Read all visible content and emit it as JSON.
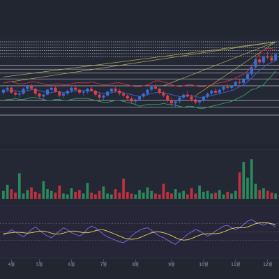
{
  "header": {
    "title": ""
  },
  "colors": {
    "background": "#222631",
    "up": "#3a6fd8",
    "down": "#e0404a",
    "volume_up": "#2a8a5e",
    "volume_down": "#c23040",
    "band_upper": "#c0304a",
    "band_middle": "#3b5fc8",
    "band_lower": "#2f9a60",
    "trendline": "#c9c060",
    "level": "#d7d9e0",
    "rsi": "#7f6ee6",
    "rsi_signal": "#e8d85a",
    "grid": "#2e3240"
  },
  "chart_data": {
    "type": "candlestick",
    "x_tick_labels": [
      "4월",
      "5월",
      "6월",
      "7월",
      "8월",
      "9월",
      "10월",
      "11월",
      "12월"
    ],
    "price": {
      "ylim": [
        0,
        100
      ],
      "candles": [
        [
          48,
          52,
          46,
          51
        ],
        [
          51,
          55,
          49,
          53
        ],
        [
          53,
          54,
          47,
          48
        ],
        [
          48,
          50,
          44,
          46
        ],
        [
          46,
          49,
          43,
          47
        ],
        [
          47,
          53,
          46,
          52
        ],
        [
          52,
          56,
          50,
          55
        ],
        [
          55,
          57,
          51,
          52
        ],
        [
          52,
          53,
          45,
          47
        ],
        [
          47,
          48,
          42,
          44
        ],
        [
          44,
          47,
          41,
          46
        ],
        [
          46,
          52,
          45,
          51
        ],
        [
          51,
          54,
          49,
          53
        ],
        [
          53,
          55,
          48,
          49
        ],
        [
          49,
          50,
          43,
          45
        ],
        [
          45,
          48,
          42,
          47
        ],
        [
          47,
          51,
          45,
          50
        ],
        [
          50,
          54,
          48,
          53
        ],
        [
          53,
          56,
          50,
          51
        ],
        [
          51,
          52,
          46,
          48
        ],
        [
          48,
          50,
          45,
          49
        ],
        [
          49,
          53,
          47,
          52
        ],
        [
          52,
          55,
          49,
          50
        ],
        [
          50,
          51,
          44,
          46
        ],
        [
          46,
          48,
          41,
          43
        ],
        [
          43,
          46,
          40,
          45
        ],
        [
          45,
          50,
          44,
          49
        ],
        [
          49,
          53,
          47,
          52
        ],
        [
          52,
          54,
          48,
          50
        ],
        [
          50,
          52,
          45,
          47
        ],
        [
          47,
          49,
          43,
          45
        ],
        [
          45,
          47,
          40,
          42
        ],
        [
          42,
          44,
          37,
          39
        ],
        [
          39,
          42,
          35,
          41
        ],
        [
          41,
          45,
          39,
          44
        ],
        [
          44,
          48,
          42,
          47
        ],
        [
          47,
          52,
          45,
          51
        ],
        [
          51,
          55,
          49,
          54
        ],
        [
          54,
          57,
          51,
          52
        ],
        [
          52,
          53,
          46,
          48
        ],
        [
          48,
          50,
          43,
          45
        ],
        [
          45,
          47,
          38,
          40
        ],
        [
          40,
          43,
          34,
          37
        ],
        [
          37,
          40,
          33,
          39
        ],
        [
          39,
          44,
          37,
          43
        ],
        [
          43,
          47,
          41,
          46
        ],
        [
          46,
          50,
          43,
          44
        ],
        [
          44,
          46,
          39,
          41
        ],
        [
          41,
          43,
          36,
          38
        ],
        [
          38,
          41,
          35,
          40
        ],
        [
          40,
          45,
          38,
          44
        ],
        [
          44,
          48,
          42,
          47
        ],
        [
          47,
          51,
          45,
          50
        ],
        [
          50,
          53,
          47,
          48
        ],
        [
          48,
          52,
          46,
          51
        ],
        [
          51,
          55,
          49,
          54
        ],
        [
          54,
          57,
          51,
          53
        ],
        [
          53,
          56,
          50,
          55
        ],
        [
          55,
          60,
          54,
          59
        ],
        [
          59,
          62,
          56,
          58
        ],
        [
          58,
          63,
          57,
          62
        ],
        [
          62,
          68,
          60,
          67
        ],
        [
          67,
          76,
          65,
          74
        ],
        [
          74,
          84,
          72,
          82
        ],
        [
          82,
          88,
          76,
          79
        ],
        [
          79,
          86,
          77,
          85
        ],
        [
          85,
          90,
          82,
          84
        ],
        [
          84,
          87,
          79,
          81
        ],
        [
          81,
          88,
          80,
          87
        ]
      ],
      "bollinger_upper": [
        58,
        59,
        59,
        58,
        57,
        57,
        58,
        59,
        59,
        58,
        57,
        56,
        56,
        57,
        57,
        56,
        56,
        57,
        58,
        58,
        58,
        58,
        59,
        58,
        57,
        56,
        56,
        57,
        58,
        58,
        57,
        56,
        55,
        54,
        54,
        55,
        56,
        58,
        60,
        60,
        59,
        58,
        56,
        55,
        54,
        55,
        56,
        56,
        55,
        54,
        54,
        55,
        56,
        57,
        58,
        59,
        60,
        61,
        63,
        65,
        67,
        70,
        75,
        82,
        88,
        92,
        93,
        93,
        92
      ],
      "bollinger_middle": [
        49,
        50,
        50,
        50,
        49,
        49,
        50,
        51,
        51,
        50,
        49,
        48,
        48,
        49,
        49,
        48,
        48,
        49,
        50,
        50,
        50,
        50,
        50,
        49,
        48,
        47,
        47,
        48,
        49,
        49,
        48,
        47,
        46,
        45,
        44,
        45,
        46,
        47,
        48,
        48,
        48,
        47,
        46,
        45,
        44,
        44,
        45,
        45,
        44,
        43,
        43,
        44,
        45,
        46,
        47,
        48,
        49,
        50,
        52,
        54,
        56,
        59,
        63,
        67,
        71,
        74,
        77,
        79,
        81
      ],
      "bollinger_lower": [
        40,
        41,
        41,
        42,
        41,
        41,
        42,
        43,
        43,
        42,
        41,
        40,
        40,
        41,
        41,
        40,
        40,
        41,
        42,
        42,
        42,
        42,
        41,
        40,
        39,
        38,
        38,
        39,
        40,
        40,
        39,
        38,
        37,
        36,
        34,
        35,
        36,
        36,
        36,
        36,
        37,
        36,
        36,
        35,
        34,
        33,
        34,
        34,
        33,
        32,
        32,
        33,
        34,
        35,
        36,
        37,
        38,
        39,
        41,
        43,
        45,
        48,
        51,
        52,
        54,
        56,
        61,
        65,
        70
      ],
      "level_lines": [
        100,
        97,
        94,
        91,
        88,
        85,
        76,
        72,
        68,
        62,
        55,
        40,
        33,
        25
      ],
      "trendlines": [
        {
          "from": [
            0,
            64
          ],
          "to": [
            68,
            100
          ]
        },
        {
          "from": [
            0,
            58
          ],
          "to": [
            68,
            100
          ]
        },
        {
          "from": [
            40,
            55
          ],
          "to": [
            68,
            100
          ]
        },
        {
          "from": [
            48,
            45
          ],
          "to": [
            68,
            100
          ]
        }
      ]
    },
    "volume": {
      "ylim": [
        0,
        100
      ],
      "values": [
        18,
        32,
        22,
        14,
        58,
        12,
        20,
        26,
        16,
        12,
        40,
        22,
        18,
        14,
        30,
        12,
        10,
        24,
        16,
        20,
        12,
        36,
        14,
        10,
        18,
        28,
        12,
        10,
        22,
        14,
        46,
        16,
        12,
        10,
        20,
        14,
        26,
        18,
        12,
        10,
        34,
        16,
        12,
        22,
        14,
        18,
        10,
        24,
        12,
        30,
        16,
        18,
        12,
        14,
        20,
        10,
        16,
        12,
        18,
        60,
        84,
        48,
        90,
        34,
        20,
        24,
        18,
        14,
        12
      ]
    },
    "rsi": {
      "ylim": [
        0,
        100
      ],
      "guides": [
        70,
        50,
        30
      ],
      "values": [
        42,
        48,
        55,
        50,
        44,
        38,
        46,
        56,
        62,
        54,
        46,
        40,
        36,
        44,
        52,
        60,
        56,
        48,
        44,
        40,
        46,
        58,
        64,
        60,
        52,
        44,
        38,
        34,
        30,
        26,
        24,
        30,
        40,
        48,
        54,
        58,
        60,
        54,
        46,
        40,
        36,
        30,
        24,
        20,
        28,
        36,
        44,
        50,
        56,
        52,
        46,
        40,
        44,
        52,
        58,
        64,
        66,
        60,
        56,
        60,
        68,
        76,
        80,
        74,
        70,
        66,
        72,
        68,
        62
      ],
      "signal": [
        46,
        47,
        48,
        49,
        49,
        48,
        47,
        48,
        50,
        52,
        52,
        50,
        47,
        45,
        45,
        47,
        50,
        52,
        52,
        50,
        48,
        48,
        50,
        53,
        55,
        55,
        52,
        48,
        44,
        40,
        36,
        33,
        32,
        33,
        36,
        40,
        44,
        48,
        50,
        50,
        48,
        45,
        41,
        36,
        32,
        30,
        31,
        34,
        38,
        42,
        45,
        46,
        46,
        46,
        47,
        50,
        54,
        58,
        60,
        60,
        60,
        62,
        66,
        70,
        72,
        72,
        72,
        70,
        68
      ]
    }
  }
}
